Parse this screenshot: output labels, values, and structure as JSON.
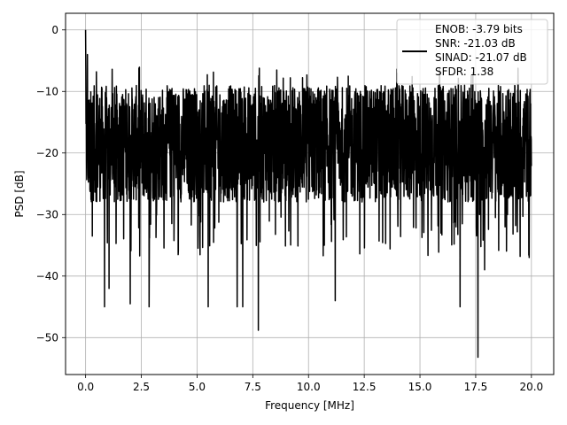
{
  "chart_data": {
    "type": "line",
    "title": "",
    "xlabel": "Frequency [MHz]",
    "ylabel": "PSD [dB]",
    "xlim": [
      -0.9,
      21.0
    ],
    "ylim": [
      -56.0,
      2.7
    ],
    "xticks": [
      0.0,
      2.5,
      5.0,
      7.5,
      10.0,
      12.5,
      15.0,
      17.5,
      20.0
    ],
    "xtick_labels": [
      "0.0",
      "2.5",
      "5.0",
      "7.5",
      "10.0",
      "12.5",
      "15.0",
      "17.5",
      "20.0"
    ],
    "yticks": [
      0,
      -10,
      -20,
      -30,
      -40,
      -50
    ],
    "ytick_labels": [
      "0",
      "−10",
      "−20",
      "−30",
      "−40",
      "−50"
    ],
    "grid": true,
    "legend": {
      "placement": "top-right",
      "lines": [
        "ENOB: -3.79 bits",
        "SNR: -21.03 dB",
        "SINAD: -21.07 dB",
        "SFDR: 1.38"
      ]
    },
    "series": [
      {
        "color": "#000000",
        "x_start": 0.0,
        "x_end": 20.0,
        "notable_points": [
          {
            "x": 0.0,
            "y": 0.0
          },
          {
            "x": 0.08,
            "y": -4.0
          },
          {
            "x": 0.15,
            "y": -24.0
          },
          {
            "x": 0.3,
            "y": -33.5
          },
          {
            "x": 0.85,
            "y": -45.0
          },
          {
            "x": 1.05,
            "y": -42.0
          },
          {
            "x": 2.0,
            "y": -44.5
          },
          {
            "x": 2.85,
            "y": -45.0
          },
          {
            "x": 5.5,
            "y": -45.0
          },
          {
            "x": 6.8,
            "y": -45.0
          },
          {
            "x": 7.05,
            "y": -45.0
          },
          {
            "x": 7.75,
            "y": -48.8
          },
          {
            "x": 11.2,
            "y": -44.0
          },
          {
            "x": 16.8,
            "y": -45.0
          },
          {
            "x": 17.6,
            "y": -53.2
          },
          {
            "x": 17.9,
            "y": -39.0
          }
        ],
        "typical_range_y": [
          -28,
          -9
        ]
      }
    ]
  }
}
